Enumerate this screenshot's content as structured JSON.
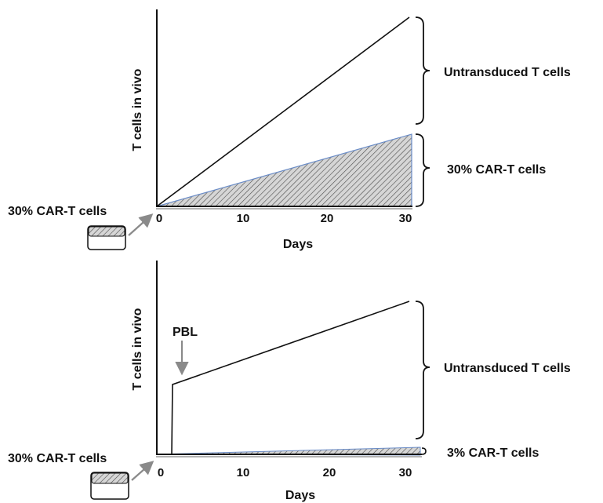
{
  "panels": [
    {
      "ylabel": "T cells in vivo",
      "xlabel": "Days",
      "x_ticks": [
        "0",
        "10",
        "20",
        "30"
      ],
      "input_label": "30% CAR-T cells",
      "brace_top_label": "Untransduced T cells",
      "brace_bottom_label": "30% CAR-T cells",
      "arrow_label": ""
    },
    {
      "ylabel": "T cells in vivo",
      "xlabel": "Days",
      "x_ticks": [
        "0",
        "10",
        "20",
        "30"
      ],
      "input_label": "30% CAR-T cells",
      "brace_top_label": "Untransduced T cells",
      "brace_bottom_label": "3% CAR-T cells",
      "arrow_label": "PBL"
    }
  ],
  "colors": {
    "line": "#111111",
    "hatch_fill": "#d9d9d9",
    "hatch_stroke": "#555555",
    "car_edge": "#6a8cc7",
    "arrow": "#8a8a8a"
  }
}
